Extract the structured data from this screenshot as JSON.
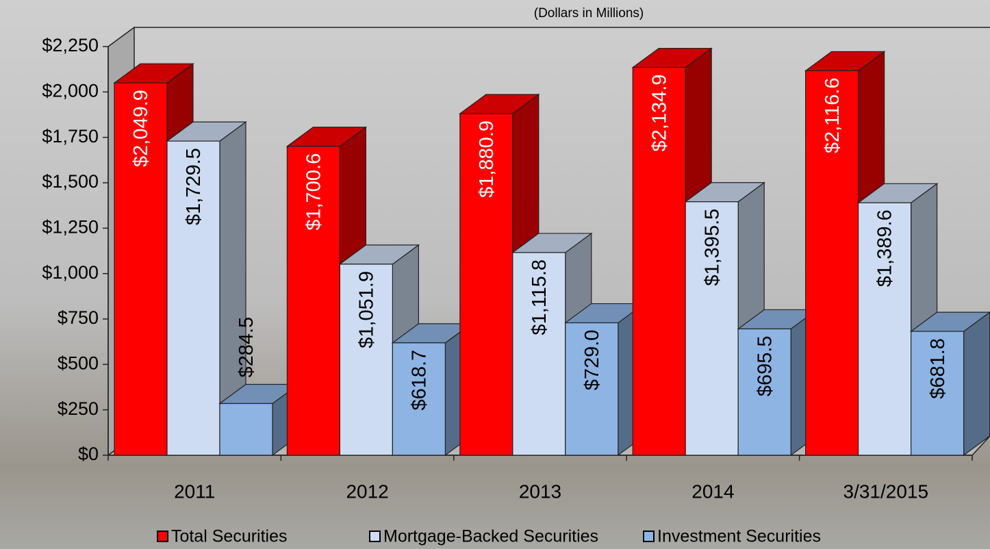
{
  "chart_data": {
    "type": "bar3d",
    "title": "(Dollars in Millions)",
    "categories": [
      "2011",
      "2012",
      "2013",
      "2014",
      "3/31/2015"
    ],
    "series": [
      {
        "name": "Total Securities",
        "color": "#ff0000",
        "values": [
          2049.9,
          1700.6,
          1880.9,
          2134.9,
          2116.6
        ],
        "value_labels": [
          "$2,049.9",
          "$1,700.6",
          "$1,880.9",
          "$2,134.9",
          "$2,116.6"
        ]
      },
      {
        "name": "Mortgage-Backed Securities",
        "color": "#cddcf2",
        "values": [
          1729.5,
          1051.9,
          1115.8,
          1395.5,
          1389.6
        ],
        "value_labels": [
          "$1,729.5",
          "$1,051.9",
          "$1,115.8",
          "$1,395.5",
          "$1,389.6"
        ]
      },
      {
        "name": "Investment Securities",
        "color": "#8eb4e3",
        "values": [
          284.5,
          618.7,
          729.0,
          695.5,
          681.8
        ],
        "value_labels": [
          "$284.5",
          "$618.7",
          "$729.0",
          "$695.5",
          "$681.8"
        ]
      }
    ],
    "ylim": [
      0,
      2250
    ],
    "yticks": [
      {
        "value": 0,
        "label": "$0"
      },
      {
        "value": 250,
        "label": "$250"
      },
      {
        "value": 500,
        "label": "$500"
      },
      {
        "value": 750,
        "label": "$750"
      },
      {
        "value": 1000,
        "label": "$1,000"
      },
      {
        "value": 1250,
        "label": "$1,250"
      },
      {
        "value": 1500,
        "label": "$1,500"
      },
      {
        "value": 1750,
        "label": "$1,750"
      },
      {
        "value": 2000,
        "label": "$2,000"
      },
      {
        "value": 2250,
        "label": "$2,250"
      }
    ],
    "legend": "bottom"
  }
}
